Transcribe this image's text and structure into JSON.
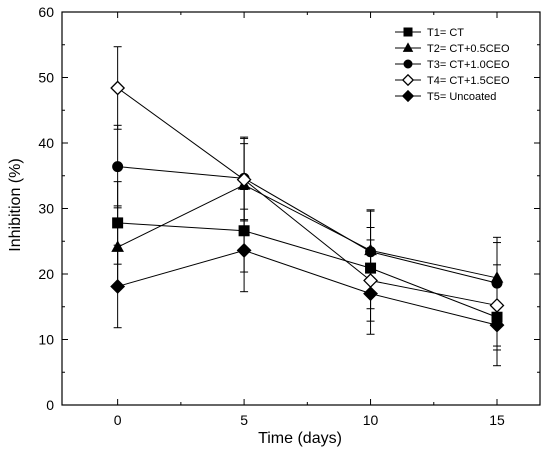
{
  "chart_data": {
    "type": "line",
    "title": "",
    "xlabel": "Time (days)",
    "ylabel": "Inhibition (%)",
    "x": [
      0,
      5,
      10,
      15
    ],
    "xlim": [
      -2.2,
      16.7
    ],
    "ylim": [
      0,
      60
    ],
    "xticks": [
      0,
      5,
      10,
      15
    ],
    "yticks": [
      0,
      10,
      20,
      30,
      40,
      50,
      60
    ],
    "grid": false,
    "legend_position": "top-right",
    "line_color": "#000000",
    "series": [
      {
        "name": "T1= CT",
        "marker": "square-filled",
        "values": [
          27.8,
          26.6,
          20.9,
          13.4
        ],
        "errors": [
          6.3,
          6.3,
          6.2,
          5.0
        ]
      },
      {
        "name": "T2= CT+0.5CEO",
        "marker": "triangle-filled",
        "values": [
          24.1,
          33.6,
          23.6,
          19.4
        ],
        "errors": [
          6.3,
          6.3,
          6.2,
          6.2
        ]
      },
      {
        "name": "T3= CT+1.0CEO",
        "marker": "circle-filled",
        "values": [
          36.4,
          34.6,
          23.4,
          18.6
        ],
        "errors": [
          6.3,
          6.3,
          6.2,
          6.2
        ]
      },
      {
        "name": "T4= CT+1.5CEO",
        "marker": "diamond-open",
        "values": [
          48.4,
          34.4,
          19.0,
          15.2
        ],
        "errors": [
          6.3,
          6.3,
          6.2,
          6.2
        ]
      },
      {
        "name": "T5= Uncoated",
        "marker": "diamond-filled",
        "values": [
          18.1,
          23.6,
          17.0,
          12.2
        ],
        "errors": [
          6.3,
          6.3,
          6.2,
          6.2
        ]
      }
    ]
  }
}
